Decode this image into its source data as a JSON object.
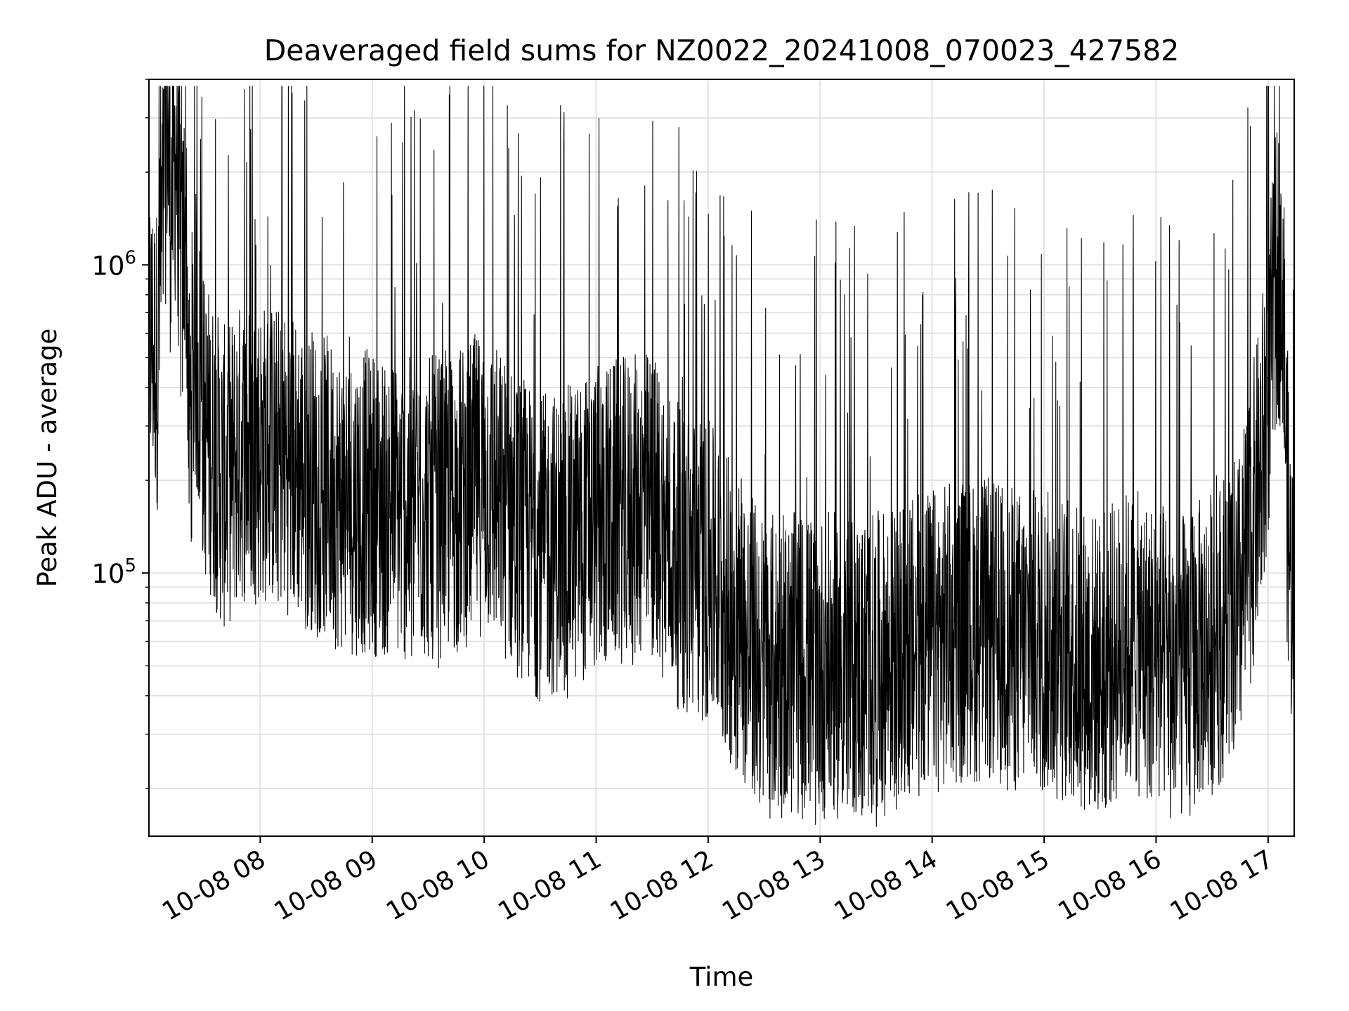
{
  "chart_data": {
    "type": "line",
    "title": "Deaveraged field sums for NZ0022_20241008_070023_427582",
    "xlabel": "Time",
    "ylabel": "Peak ADU - average",
    "x_axis_type": "time",
    "xlim": [
      "2024-10-08 07:00:23",
      "2024-10-08 17:14:00"
    ],
    "y_scale": "log",
    "ylim": [
      14000,
      4000000
    ],
    "grid": true,
    "legend": "none",
    "line_color": "#000000",
    "x_ticks": [
      "10-08 08",
      "10-08 09",
      "10-08 10",
      "10-08 11",
      "10-08 12",
      "10-08 13",
      "10-08 14",
      "10-08 15",
      "10-08 16",
      "10-08 17"
    ],
    "y_ticks": [
      {
        "value": 100000,
        "base": "10",
        "exp": "5"
      },
      {
        "value": 1000000,
        "base": "10",
        "exp": "6"
      }
    ],
    "series": [
      {
        "x": [
          "2024-10-08 07:00:23",
          "2024-10-08 07:05",
          "2024-10-08 07:10",
          "2024-10-08 07:12",
          "2024-10-08 07:15",
          "2024-10-08 07:18",
          "2024-10-08 07:20",
          "2024-10-08 07:22",
          "2024-10-08 07:25",
          "2024-10-08 07:28",
          "2024-10-08 07:30",
          "2024-10-08 07:35",
          "2024-10-08 07:40",
          "2024-10-08 07:45",
          "2024-10-08 07:50",
          "2024-10-08 08:00",
          "2024-10-08 08:15",
          "2024-10-08 08:30",
          "2024-10-08 08:45",
          "2024-10-08 09:00",
          "2024-10-08 09:15",
          "2024-10-08 09:30",
          "2024-10-08 09:45",
          "2024-10-08 10:00",
          "2024-10-08 10:15",
          "2024-10-08 10:30",
          "2024-10-08 10:45",
          "2024-10-08 11:00",
          "2024-10-08 11:15",
          "2024-10-08 11:30",
          "2024-10-08 11:45",
          "2024-10-08 12:00",
          "2024-10-08 12:15",
          "2024-10-08 12:30",
          "2024-10-08 12:45",
          "2024-10-08 13:00",
          "2024-10-08 13:15",
          "2024-10-08 13:30",
          "2024-10-08 13:45",
          "2024-10-08 14:00",
          "2024-10-08 14:15",
          "2024-10-08 14:30",
          "2024-10-08 14:45",
          "2024-10-08 15:00",
          "2024-10-08 15:15",
          "2024-10-08 15:30",
          "2024-10-08 15:45",
          "2024-10-08 16:00",
          "2024-10-08 16:15",
          "2024-10-08 16:30",
          "2024-10-08 16:45",
          "2024-10-08 16:55",
          "2024-10-08 17:00",
          "2024-10-08 17:05",
          "2024-10-08 17:08",
          "2024-10-08 17:10",
          "2024-10-08 17:12",
          "2024-10-08 17:14"
        ],
        "y": [
          600000,
          500000,
          3000000,
          1500000,
          2500000,
          800000,
          1800000,
          300000,
          600000,
          400000,
          300000,
          250000,
          200000,
          220000,
          250000,
          250000,
          230000,
          200000,
          170000,
          170000,
          160000,
          160000,
          170000,
          200000,
          150000,
          120000,
          130000,
          150000,
          160000,
          170000,
          110000,
          100000,
          70000,
          50000,
          50000,
          50000,
          50000,
          50000,
          55000,
          60000,
          65000,
          65000,
          60000,
          60000,
          55000,
          50000,
          60000,
          55000,
          50000,
          60000,
          80000,
          200000,
          400000,
          1000000,
          900000,
          200000,
          100000,
          80000
        ]
      }
    ]
  }
}
